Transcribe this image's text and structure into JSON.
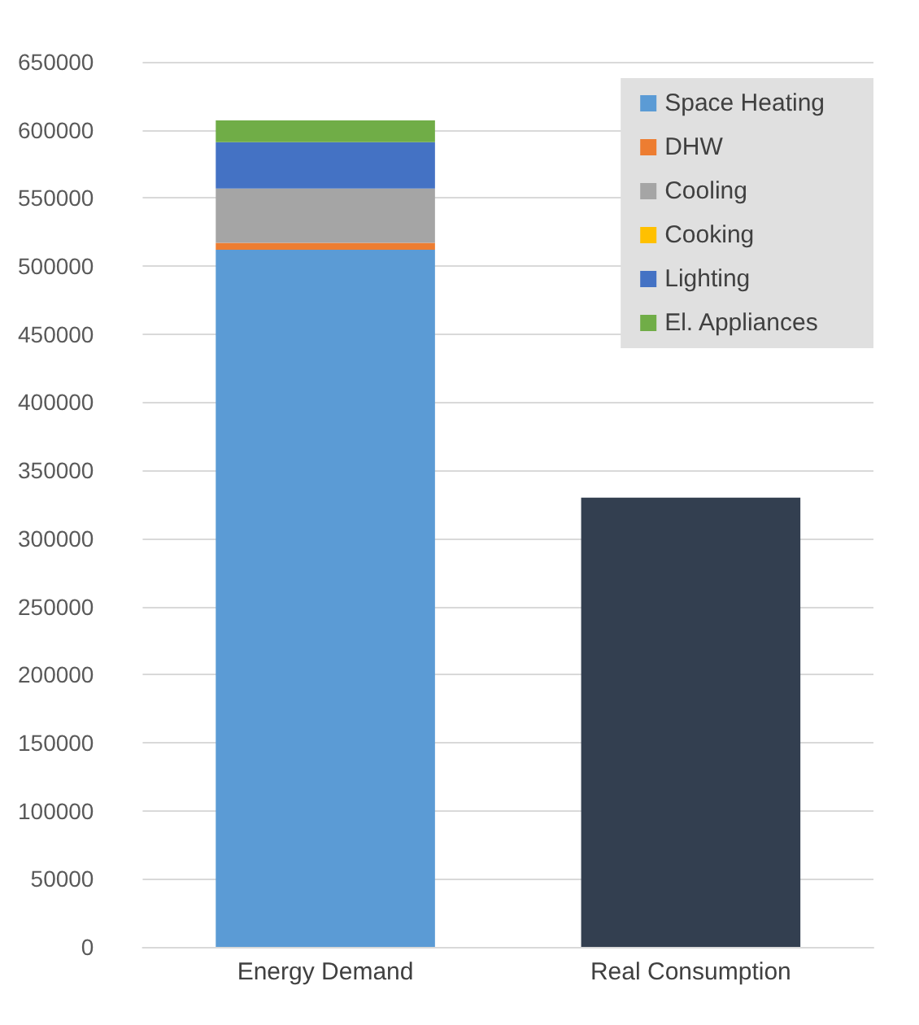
{
  "chart_data": {
    "type": "bar",
    "stacked": true,
    "categories": [
      "Energy Demand",
      "Real Consumption"
    ],
    "series": [
      {
        "name": "Space Heating",
        "color": "#5b9bd5",
        "values": [
          512000,
          null
        ]
      },
      {
        "name": "DHW",
        "color": "#ed7d31",
        "values": [
          5000,
          null
        ]
      },
      {
        "name": "Cooling",
        "color": "#a5a5a5",
        "values": [
          40000,
          null
        ]
      },
      {
        "name": "Cooking",
        "color": "#ffc000",
        "values": [
          0,
          null
        ]
      },
      {
        "name": "Lighting",
        "color": "#4472c4",
        "values": [
          34000,
          null
        ]
      },
      {
        "name": "El. Appliances",
        "color": "#70ad47",
        "values": [
          16000,
          null
        ]
      },
      {
        "color": "#333f50",
        "values": [
          null,
          330000
        ]
      }
    ],
    "ylim": [
      0,
      650000
    ],
    "yticks": [
      0,
      50000,
      100000,
      150000,
      200000,
      250000,
      300000,
      350000,
      400000,
      450000,
      500000,
      550000,
      600000,
      650000
    ],
    "grid": "y",
    "legend": "top right"
  }
}
